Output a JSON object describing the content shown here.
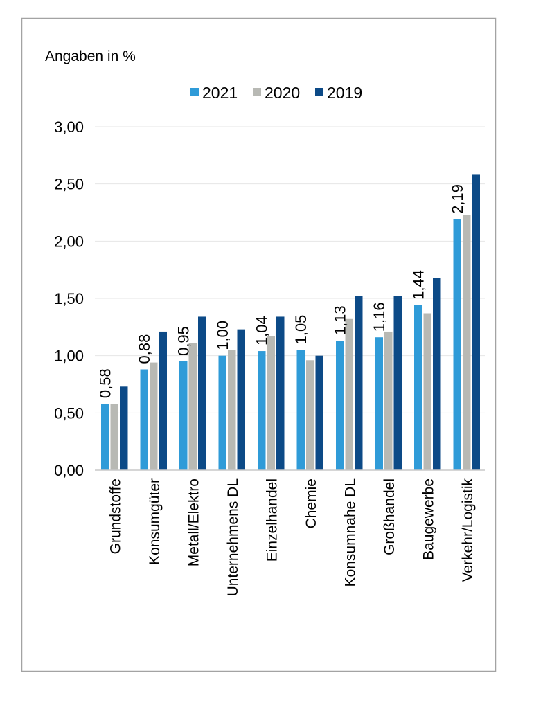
{
  "chart_data": {
    "type": "bar",
    "ylabel": "Angaben in %",
    "categories": [
      "Grundstoffe",
      "Konsumgüter",
      "Metall/Elektro",
      "Unternehmens DL",
      "Einzelhandel",
      "Chemie",
      "Konsumnahe DL",
      "Großhandel",
      "Baugewerbe",
      "Verkehr/Logistik"
    ],
    "series": [
      {
        "name": "2021",
        "color": "#2f9bd8",
        "values": [
          0.58,
          0.88,
          0.95,
          1.0,
          1.04,
          1.05,
          1.13,
          1.16,
          1.44,
          2.19
        ],
        "data_labels": [
          "0,58",
          "0,88",
          "0,95",
          "1,00",
          "1,04",
          "1,05",
          "1,13",
          "1,16",
          "1,44",
          "2,19"
        ]
      },
      {
        "name": "2020",
        "color": "#b8b9b4",
        "values": [
          0.58,
          0.94,
          1.11,
          1.05,
          1.17,
          0.96,
          1.32,
          1.21,
          1.37,
          2.23
        ]
      },
      {
        "name": "2019",
        "color": "#0c4a87",
        "values": [
          0.73,
          1.21,
          1.34,
          1.23,
          1.34,
          1.0,
          1.52,
          1.52,
          1.68,
          2.58
        ]
      }
    ],
    "ylim": [
      0,
      3
    ],
    "yticks": [
      0,
      0.5,
      1,
      1.5,
      2,
      2.5,
      3
    ],
    "ytick_labels": [
      "0,00",
      "0,50",
      "1,00",
      "1,50",
      "2,00",
      "2,50",
      "3,00"
    ],
    "grid": true,
    "legend_position": "top-center"
  },
  "colors": {
    "grid": "#e6e6e6",
    "axis": "#c8c8c8",
    "frame": "#a3a3a3"
  }
}
